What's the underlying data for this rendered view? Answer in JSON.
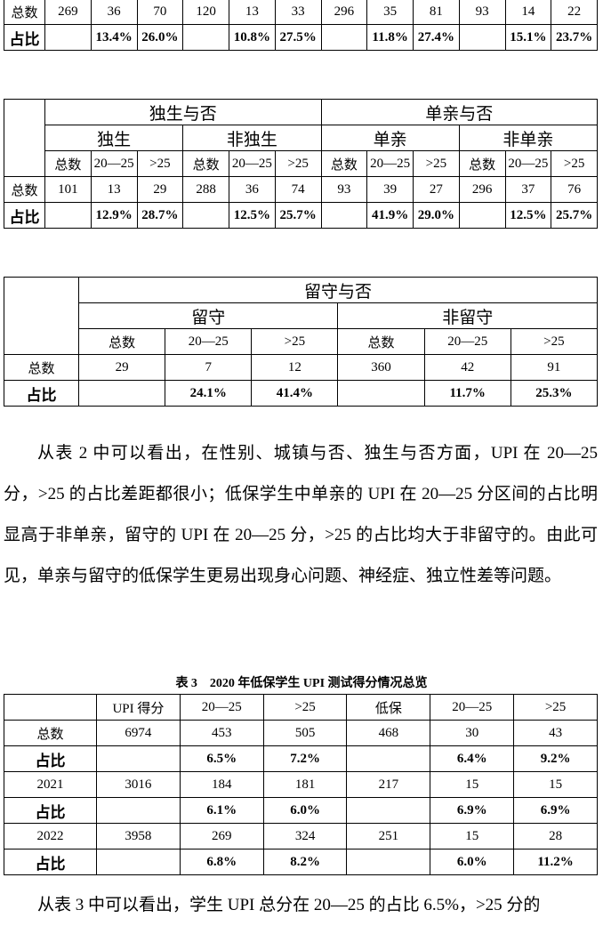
{
  "table_1": {
    "rows": [
      [
        "总数",
        "269",
        "36",
        "70",
        "120",
        "13",
        "33",
        "296",
        "35",
        "81",
        "93",
        "14",
        "22"
      ],
      [
        "占比",
        null,
        "13.4%",
        "26.0%",
        null,
        "10.8%",
        "27.5%",
        null,
        "11.8%",
        "27.4%",
        null,
        "15.1%",
        "23.7%"
      ]
    ]
  },
  "table_2": {
    "header": [
      [
        "独生与否",
        "单亲与否"
      ],
      [
        "独生",
        "非独生",
        "单亲",
        "非单亲"
      ]
    ],
    "rows": [
      [
        null,
        "总数",
        "20—25",
        ">25",
        "总数",
        "20—25",
        ">25",
        "总数",
        "20—25",
        ">25",
        "总数",
        "20—25",
        ">25"
      ],
      [
        "总数",
        "101",
        "13",
        "29",
        "288",
        "36",
        "74",
        "93",
        "39",
        "27",
        "296",
        "37",
        "76"
      ],
      [
        "占比",
        null,
        "12.9%",
        "28.7%",
        null,
        "12.5%",
        "25.7%",
        null,
        "41.9%",
        "29.0%",
        null,
        "12.5%",
        "25.7%"
      ]
    ]
  },
  "table_3": {
    "header": [
      [
        "留守与否"
      ],
      [
        "留守",
        "非留守"
      ]
    ],
    "rows": [
      [
        null,
        "总数",
        "20—25",
        ">25",
        "总数",
        "20—25",
        ">25"
      ],
      [
        "总数",
        "29",
        "7",
        "12",
        "360",
        "42",
        "91"
      ],
      [
        "占比",
        null,
        "24.1%",
        "41.4%",
        null,
        "11.7%",
        "25.3%"
      ]
    ]
  },
  "paragraph_1": "从表 2 中可以看出，在性别、城镇与否、独生与否方面，UPI 在 20—25 分，>25 的占比差距都很小；低保学生中单亲的 UPI 在 20—25 分区间的占比明显高于非单亲，留守的 UPI 在 20—25 分，>25 的占比均大于非留守的。由此可见，单亲与留守的低保学生更易出现身心问题、神经症、独立性差等问题。",
  "table_4": {
    "caption": "表 3　2020 年低保学生 UPI 测试得分情况总览",
    "rows": [
      [
        null,
        "UPI 得分",
        "20—25",
        ">25",
        "低保",
        "20—25",
        ">25"
      ],
      [
        "总数",
        "6974",
        "453",
        "505",
        "468",
        "30",
        "43"
      ],
      [
        "占比",
        null,
        "6.5%",
        "7.2%",
        null,
        "6.4%",
        "9.2%"
      ],
      [
        "2021",
        "3016",
        "184",
        "181",
        "217",
        "15",
        "15"
      ],
      [
        "占比",
        null,
        "6.1%",
        "6.0%",
        null,
        "6.9%",
        "6.9%"
      ],
      [
        "2022",
        "3958",
        "269",
        "324",
        "251",
        "15",
        "28"
      ],
      [
        "占比",
        null,
        "6.8%",
        "8.2%",
        null,
        "6.0%",
        "11.2%"
      ]
    ]
  },
  "paragraph_2": "从表 3 中可以看出，学生 UPI 总分在 20—25 的占比 6.5%，>25 分的"
}
